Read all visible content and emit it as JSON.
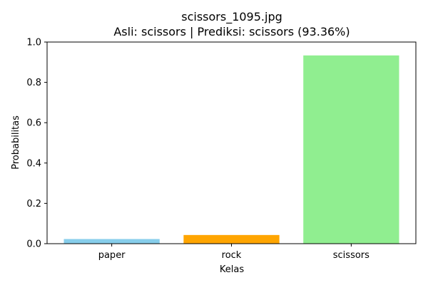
{
  "chart_data": {
    "type": "bar",
    "title": "scissors_1095.jpg",
    "subtitle": "Asli: scissors | Prediksi: scissors (93.36%)",
    "xlabel": "Kelas",
    "ylabel": "Probabilitas",
    "categories": [
      "paper",
      "rock",
      "scissors"
    ],
    "values": [
      0.023,
      0.043,
      0.9336
    ],
    "colors": [
      "#87ceeb",
      "#ffa500",
      "#90ee90"
    ],
    "ylim": [
      0,
      1.0
    ],
    "yticks": [
      0.0,
      0.2,
      0.4,
      0.6,
      0.8,
      1.0
    ],
    "ytick_labels": [
      "0.0",
      "0.2",
      "0.4",
      "0.6",
      "0.8",
      "1.0"
    ],
    "grid": false,
    "legend": "none"
  }
}
